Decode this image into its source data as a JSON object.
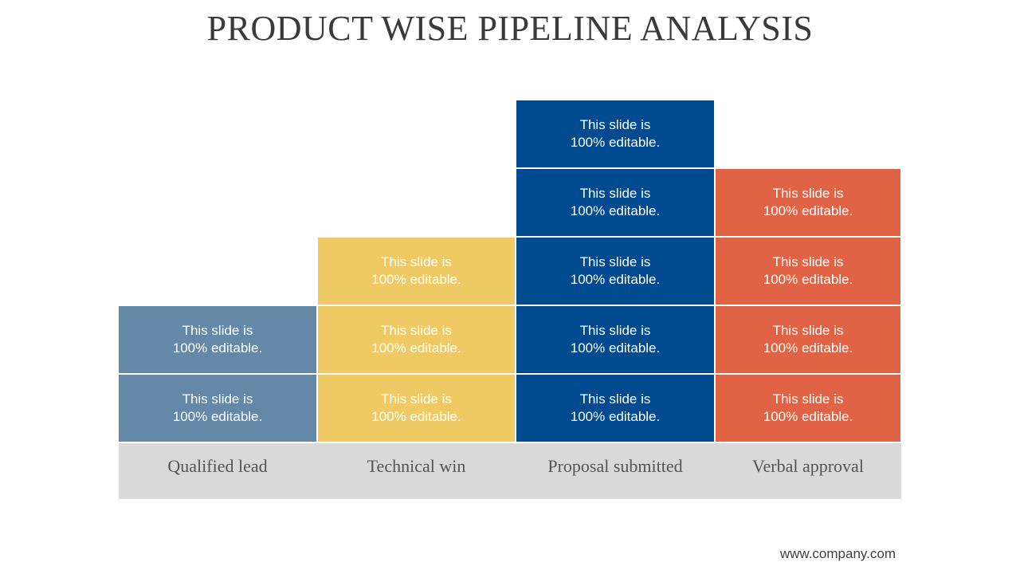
{
  "title": "PRODUCT WISE PIPELINE ANALYSIS",
  "footer": "www.company.com",
  "stages": [
    {
      "label": "Qualified lead",
      "color": "#6489a8",
      "blocks": [
        "This slide is\n100% editable.",
        "This slide is\n100% editable."
      ]
    },
    {
      "label": "Technical win",
      "color": "#efc964",
      "blocks": [
        "This slide is\n100% editable.",
        "This slide is\n100% editable.",
        "This slide is\n100% editable."
      ]
    },
    {
      "label": "Proposal submitted",
      "color": "#004a8f",
      "blocks": [
        "This slide is\n100% editable.",
        "This slide is\n100% editable.",
        "This slide is\n100% editable.",
        "This slide is\n100% editable.",
        "This slide is\n100% editable."
      ]
    },
    {
      "label": "Verbal approval",
      "color": "#e06345",
      "blocks": [
        "This slide is\n100% editable.",
        "This slide is\n100% editable.",
        "This slide is\n100% editable.",
        "This slide is\n100% editable."
      ]
    }
  ]
}
